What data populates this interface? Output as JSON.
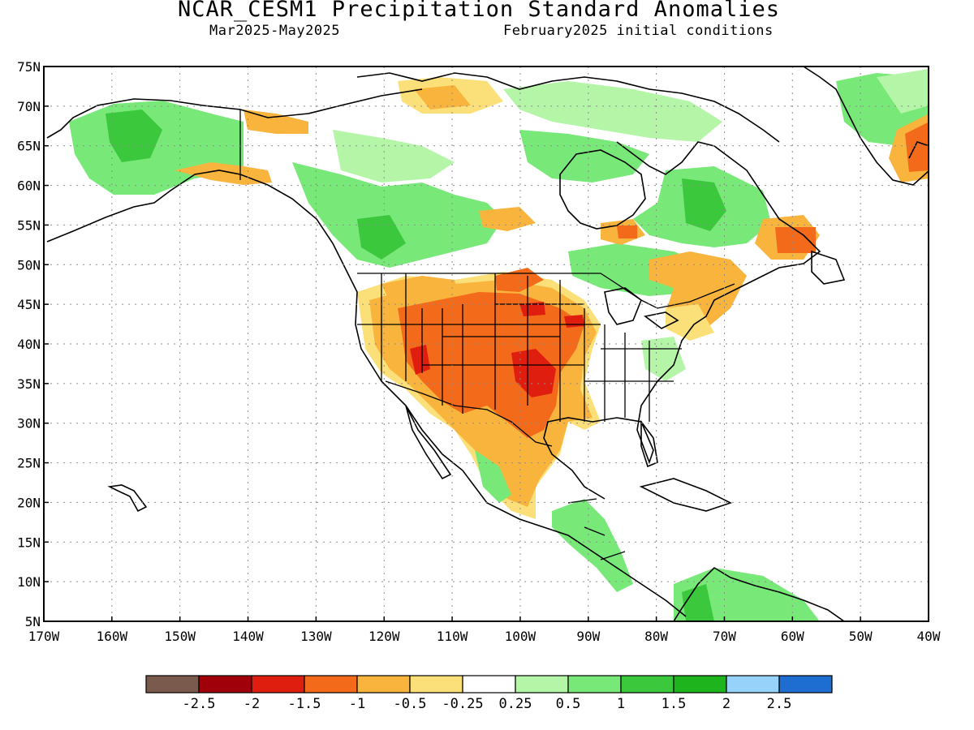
{
  "header": {
    "title": "NCAR_CESM1 Precipitation Standard Anomalies",
    "subtitle_period": "Mar2025-May2025",
    "subtitle_ic": "February2025 initial conditions"
  },
  "map": {
    "lat_ticks": [
      "75N",
      "70N",
      "65N",
      "60N",
      "55N",
      "50N",
      "45N",
      "40N",
      "35N",
      "30N",
      "25N",
      "20N",
      "15N",
      "10N",
      "5N"
    ],
    "lon_ticks": [
      "170W",
      "160W",
      "150W",
      "140W",
      "130W",
      "120W",
      "110W",
      "100W",
      "90W",
      "80W",
      "70W",
      "60W",
      "50W",
      "40W"
    ],
    "lat_range": [
      5,
      75
    ],
    "lon_range": [
      -170,
      -40
    ]
  },
  "colorbar": {
    "colors": [
      "#7b5a4e",
      "#a0000a",
      "#e01e10",
      "#f26a1a",
      "#f8b43c",
      "#fbe07a",
      "#ffffff",
      "#b4f5a8",
      "#78e878",
      "#3cc83c",
      "#1eb41e",
      "#96d2fa",
      "#1e6ed2"
    ],
    "labels": [
      "-2.5",
      "-2",
      "-1.5",
      "-1",
      "-0.5",
      "-0.25",
      "0.25",
      "0.5",
      "1",
      "1.5",
      "2",
      "2.5"
    ]
  }
}
